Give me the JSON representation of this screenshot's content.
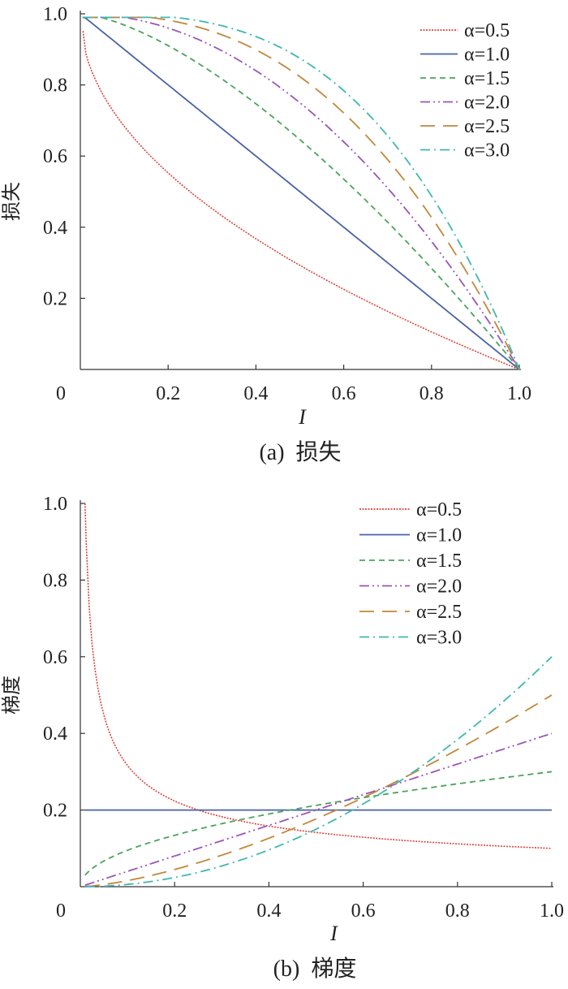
{
  "chart_data": [
    {
      "type": "line",
      "title": "",
      "caption_prefix": "(a)",
      "caption_text": "损失",
      "xlabel": "I",
      "ylabel": "损失",
      "xlim": [
        0,
        1.0
      ],
      "ylim": [
        0,
        1.0
      ],
      "xticks": [
        {
          "v": 0,
          "t": "0"
        },
        {
          "v": 0.2,
          "t": "0.2"
        },
        {
          "v": 0.4,
          "t": "0.4"
        },
        {
          "v": 0.6,
          "t": "0.6"
        },
        {
          "v": 0.8,
          "t": "0.8"
        },
        {
          "v": 1.0,
          "t": "1.0"
        }
      ],
      "yticks": [
        {
          "v": 0.2,
          "t": "0.2"
        },
        {
          "v": 0.4,
          "t": "0.4"
        },
        {
          "v": 0.6,
          "t": "0.6"
        },
        {
          "v": 0.8,
          "t": "0.8"
        },
        {
          "v": 1.0,
          "t": "1.0"
        }
      ],
      "legend_position": "top-right",
      "series": [
        {
          "name": "α=0.5",
          "alpha": 0.5,
          "color": "#d9453d",
          "dash": "2,1.5"
        },
        {
          "name": "α=1.0",
          "alpha": 1.0,
          "color": "#4a62a8",
          "dash": ""
        },
        {
          "name": "α=1.5",
          "alpha": 1.5,
          "color": "#4aa35c",
          "dash": "7,5"
        },
        {
          "name": "α=2.0",
          "alpha": 2.0,
          "color": "#9a55b8",
          "dash": "12,4,2,4,2,4"
        },
        {
          "name": "α=2.5",
          "alpha": 2.5,
          "color": "#c0883a",
          "dash": "18,10"
        },
        {
          "name": "α=3.0",
          "alpha": 3.0,
          "color": "#3fb8b0",
          "dash": "12,5,2,5"
        }
      ]
    },
    {
      "type": "line",
      "title": "",
      "caption_prefix": "(b)",
      "caption_text": "梯度",
      "xlabel": "I",
      "ylabel": "梯度",
      "xlim": [
        0,
        1.0
      ],
      "ylim": [
        0,
        1.0
      ],
      "xticks": [
        {
          "v": 0,
          "t": "0"
        },
        {
          "v": 0.2,
          "t": "0.2"
        },
        {
          "v": 0.4,
          "t": "0.4"
        },
        {
          "v": 0.6,
          "t": "0.6"
        },
        {
          "v": 0.8,
          "t": "0.8"
        },
        {
          "v": 1.0,
          "t": "1.0"
        }
      ],
      "yticks": [
        {
          "v": 0.2,
          "t": "0.2"
        },
        {
          "v": 0.4,
          "t": "0.4"
        },
        {
          "v": 0.6,
          "t": "0.6"
        },
        {
          "v": 0.8,
          "t": "0.8"
        },
        {
          "v": 1.0,
          "t": "1.0"
        }
      ],
      "legend_position": "top-right",
      "series": [
        {
          "name": "α=0.5",
          "alpha": 0.5,
          "color": "#d9453d",
          "dash": "2,1.5"
        },
        {
          "name": "α=1.0",
          "alpha": 1.0,
          "color": "#4a62a8",
          "dash": ""
        },
        {
          "name": "α=1.5",
          "alpha": 1.5,
          "color": "#4aa35c",
          "dash": "7,5"
        },
        {
          "name": "α=2.0",
          "alpha": 2.0,
          "color": "#9a55b8",
          "dash": "12,4,2,4,2,4"
        },
        {
          "name": "α=2.5",
          "alpha": 2.5,
          "color": "#c0883a",
          "dash": "18,10"
        },
        {
          "name": "α=3.0",
          "alpha": 3.0,
          "color": "#3fb8b0",
          "dash": "12,5,2,5"
        }
      ]
    }
  ]
}
